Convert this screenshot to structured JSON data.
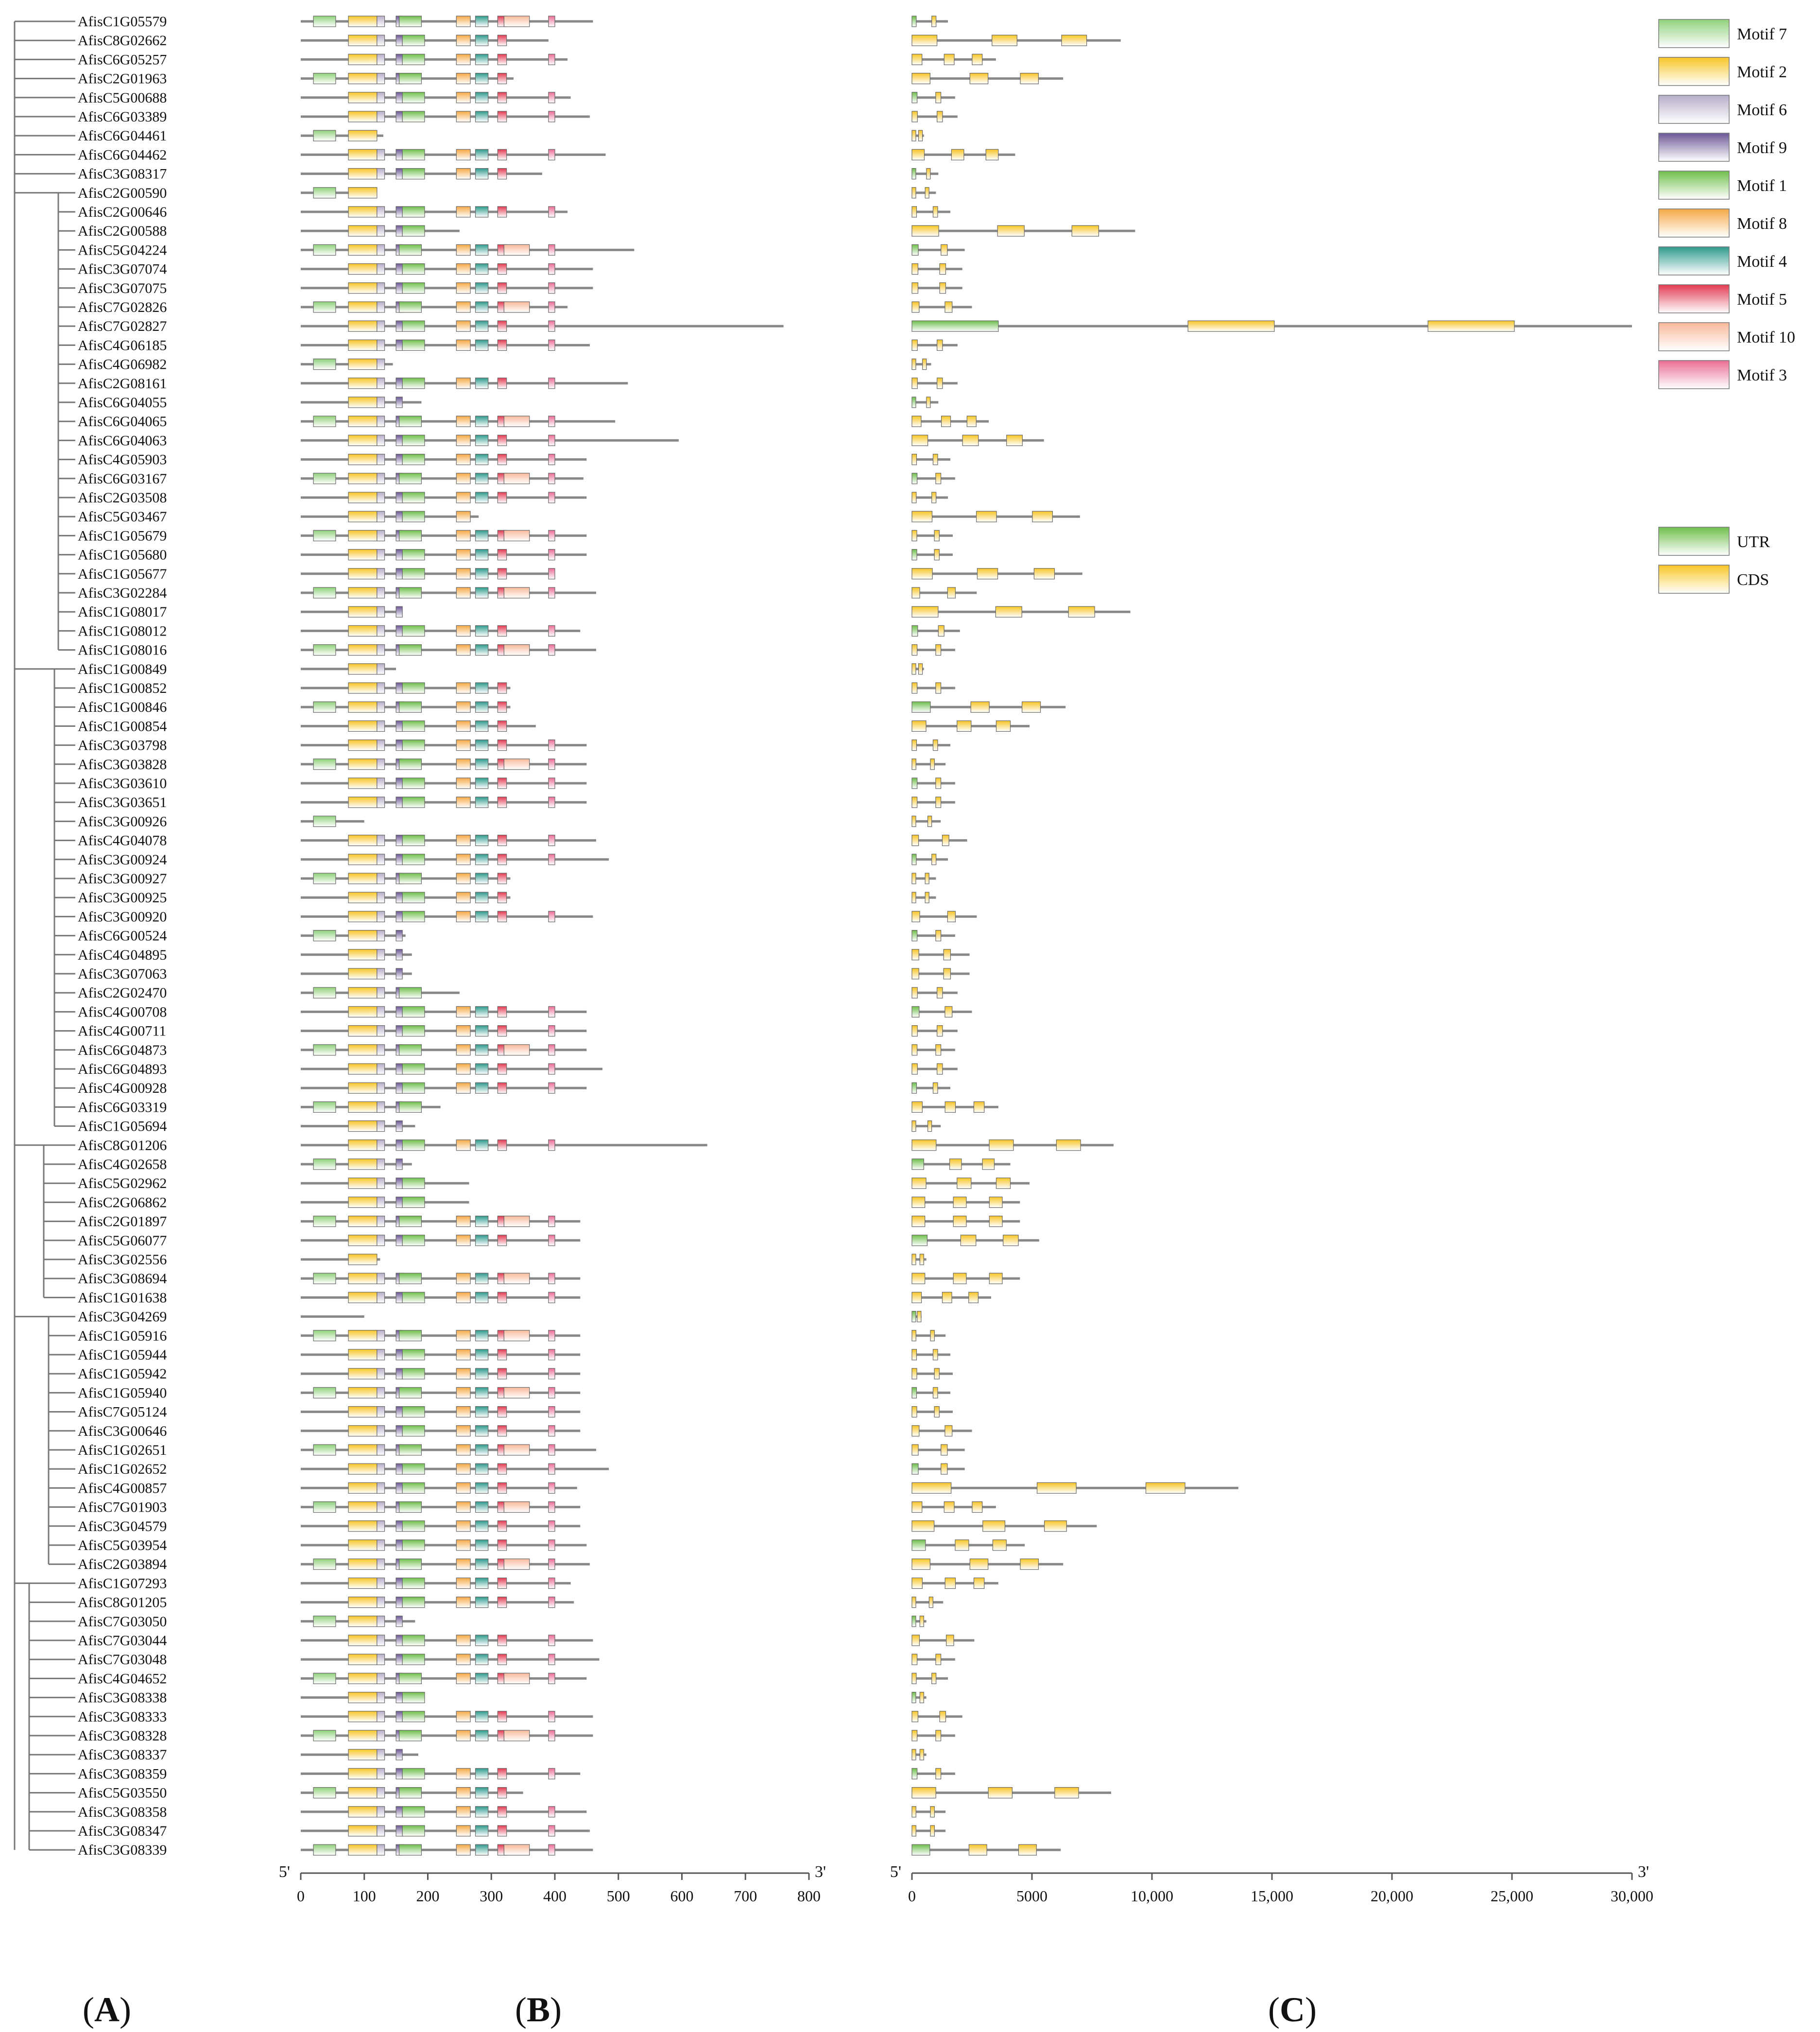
{
  "genes": [
    "AfisC1G05579",
    "AfisC8G02662",
    "AfisC6G05257",
    "AfisC2G01963",
    "AfisC5G00688",
    "AfisC6G03389",
    "AfisC6G04461",
    "AfisC6G04462",
    "AfisC3G08317",
    "AfisC2G00590",
    "AfisC2G00646",
    "AfisC2G00588",
    "AfisC5G04224",
    "AfisC3G07074",
    "AfisC3G07075",
    "AfisC7G02826",
    "AfisC7G02827",
    "AfisC4G06185",
    "AfisC4G06982",
    "AfisC2G08161",
    "AfisC6G04055",
    "AfisC6G04065",
    "AfisC6G04063",
    "AfisC4G05903",
    "AfisC6G03167",
    "AfisC2G03508",
    "AfisC5G03467",
    "AfisC1G05679",
    "AfisC1G05680",
    "AfisC1G05677",
    "AfisC3G02284",
    "AfisC1G08017",
    "AfisC1G08012",
    "AfisC1G08016",
    "AfisC1G00849",
    "AfisC1G00852",
    "AfisC1G00846",
    "AfisC1G00854",
    "AfisC3G03798",
    "AfisC3G03828",
    "AfisC3G03610",
    "AfisC3G03651",
    "AfisC3G00926",
    "AfisC4G04078",
    "AfisC3G00924",
    "AfisC3G00927",
    "AfisC3G00925",
    "AfisC3G00920",
    "AfisC6G00524",
    "AfisC4G04895",
    "AfisC3G07063",
    "AfisC2G02470",
    "AfisC4G00708",
    "AfisC4G00711",
    "AfisC6G04873",
    "AfisC6G04893",
    "AfisC4G00928",
    "AfisC6G03319",
    "AfisC1G05694",
    "AfisC8G01206",
    "AfisC4G02658",
    "AfisC5G02962",
    "AfisC2G06862",
    "AfisC2G01897",
    "AfisC5G06077",
    "AfisC3G02556",
    "AfisC3G08694",
    "AfisC1G01638",
    "AfisC3G04269",
    "AfisC1G05916",
    "AfisC1G05944",
    "AfisC1G05942",
    "AfisC1G05940",
    "AfisC7G05124",
    "AfisC3G00646",
    "AfisC1G02651",
    "AfisC1G02652",
    "AfisC4G00857",
    "AfisC7G01903",
    "AfisC3G04579",
    "AfisC5G03954",
    "AfisC2G03894",
    "AfisC1G07293",
    "AfisC8G01205",
    "AfisC7G03050",
    "AfisC7G03044",
    "AfisC7G03048",
    "AfisC4G04652",
    "AfisC3G08338",
    "AfisC3G08333",
    "AfisC3G08328",
    "AfisC3G08337",
    "AfisC3G08359",
    "AfisC5G03550",
    "AfisC3G08358",
    "AfisC3G08347",
    "AfisC3G08339"
  ],
  "protein_lengths": [
    460,
    390,
    420,
    335,
    425,
    455,
    130,
    480,
    380,
    120,
    420,
    250,
    525,
    460,
    460,
    420,
    760,
    455,
    145,
    515,
    190,
    495,
    595,
    450,
    445,
    450,
    280,
    450,
    450,
    400,
    465,
    160,
    440,
    465,
    150,
    330,
    330,
    370,
    450,
    450,
    450,
    450,
    100,
    465,
    485,
    330,
    330,
    460,
    165,
    175,
    175,
    250,
    450,
    450,
    450,
    475,
    450,
    220,
    180,
    640,
    175,
    265,
    265,
    440,
    440,
    125,
    440,
    440,
    100,
    440,
    440,
    440,
    440,
    440,
    440,
    465,
    485,
    435,
    440,
    440,
    450,
    455,
    425,
    430,
    180,
    460,
    470,
    450,
    195,
    460,
    460,
    185,
    440,
    350,
    450,
    455,
    460
  ],
  "gene_lengths": [
    1500,
    8700,
    3500,
    6300,
    1800,
    1900,
    500,
    4300,
    1100,
    1000,
    1600,
    9300,
    2200,
    2100,
    2100,
    2500,
    30000,
    1900,
    800,
    1900,
    1100,
    3200,
    5500,
    1600,
    1800,
    1500,
    7000,
    1700,
    1700,
    7100,
    2700,
    9100,
    2000,
    1800,
    500,
    1800,
    6400,
    4900,
    1600,
    1400,
    1800,
    1800,
    1200,
    2300,
    1500,
    1000,
    1000,
    2700,
    1800,
    2400,
    2400,
    1900,
    2500,
    1900,
    1800,
    1900,
    1600,
    3600,
    1200,
    8400,
    4100,
    4900,
    4500,
    4500,
    5300,
    600,
    4500,
    3300,
    400,
    1400,
    1600,
    1700,
    1600,
    1700,
    2500,
    2200,
    2200,
    13600,
    3500,
    7700,
    4700,
    6300,
    3600,
    1300,
    600,
    2600,
    1800,
    1500,
    600,
    2100,
    1800,
    600,
    1800,
    8300,
    1400,
    1400,
    6200
  ],
  "axis_b": {
    "ticks": [
      "0",
      "100",
      "200",
      "300",
      "400",
      "500",
      "600",
      "700",
      "800"
    ],
    "min": 0,
    "max": 800,
    "left_end": "5'",
    "right_end": "3'"
  },
  "axis_c": {
    "ticks": [
      "0",
      "5000",
      "10,000",
      "15,000",
      "20,000",
      "25,000",
      "30,000"
    ],
    "min": 0,
    "max": 30000,
    "left_end": "5'",
    "right_end": "3'"
  },
  "motifs": [
    {
      "name": "Motif 7",
      "color": "#8fd17a"
    },
    {
      "name": "Motif 2",
      "color": "#f7c526"
    },
    {
      "name": "Motif 6",
      "color": "#b7adc9"
    },
    {
      "name": "Motif 9",
      "color": "#6c5896"
    },
    {
      "name": "Motif 1",
      "color": "#6fbf4c"
    },
    {
      "name": "Motif 8",
      "color": "#f5a946"
    },
    {
      "name": "Motif 4",
      "color": "#2e9a8c"
    },
    {
      "name": "Motif 5",
      "color": "#e23a52"
    },
    {
      "name": "Motif 10",
      "color": "#f8b99a"
    },
    {
      "name": "Motif 3",
      "color": "#ea6e94"
    }
  ],
  "structure_legend": [
    {
      "name": "UTR",
      "color": "#6fbf4c"
    },
    {
      "name": "CDS",
      "color": "#f7c526"
    }
  ],
  "panels": [
    "A",
    "B",
    "C"
  ]
}
